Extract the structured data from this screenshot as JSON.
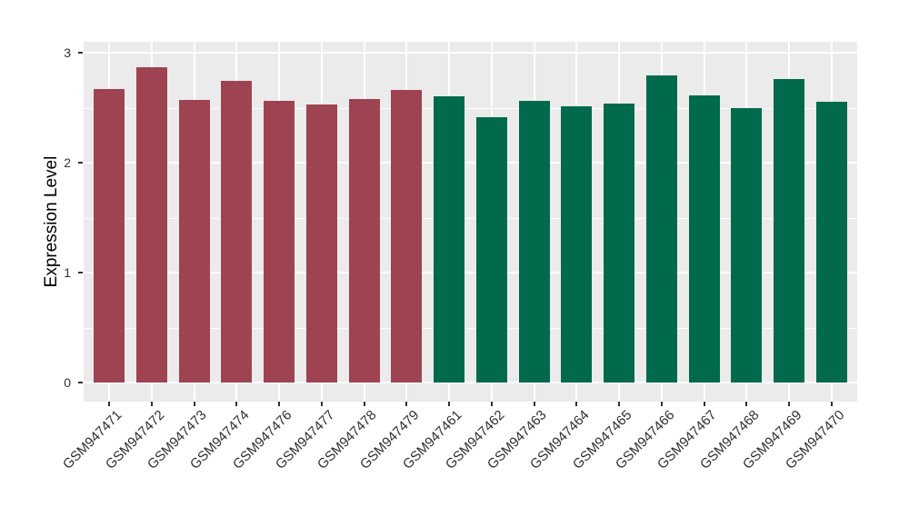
{
  "chart_data": {
    "type": "bar",
    "title": "",
    "xlabel": "",
    "ylabel": "Expression Level",
    "ylim": [
      0,
      3
    ],
    "yticks": [
      0,
      1,
      2,
      3
    ],
    "yticks_minor": [
      0.5,
      1.5,
      2.5
    ],
    "grid": "on",
    "legend_position": "none",
    "panel_bg_color": "#EBEBEB",
    "grid_color": "#FFFFFF",
    "group_colors": {
      "left_group": "#9E4352",
      "right_group": "#016A4C"
    },
    "categories": [
      "GSM947471",
      "GSM947472",
      "GSM947473",
      "GSM947474",
      "GSM947476",
      "GSM947477",
      "GSM947478",
      "GSM947479",
      "GSM947461",
      "GSM947462",
      "GSM947463",
      "GSM947464",
      "GSM947465",
      "GSM947466",
      "GSM947467",
      "GSM947468",
      "GSM947469",
      "GSM947470"
    ],
    "values": [
      2.67,
      2.87,
      2.57,
      2.74,
      2.56,
      2.53,
      2.58,
      2.66,
      2.6,
      2.41,
      2.56,
      2.51,
      2.54,
      2.79,
      2.61,
      2.5,
      2.76,
      2.55
    ],
    "bars": [
      {
        "label": "GSM947471",
        "value": 2.67,
        "group": "left_group"
      },
      {
        "label": "GSM947472",
        "value": 2.87,
        "group": "left_group"
      },
      {
        "label": "GSM947473",
        "value": 2.57,
        "group": "left_group"
      },
      {
        "label": "GSM947474",
        "value": 2.74,
        "group": "left_group"
      },
      {
        "label": "GSM947476",
        "value": 2.56,
        "group": "left_group"
      },
      {
        "label": "GSM947477",
        "value": 2.53,
        "group": "left_group"
      },
      {
        "label": "GSM947478",
        "value": 2.58,
        "group": "left_group"
      },
      {
        "label": "GSM947479",
        "value": 2.66,
        "group": "left_group"
      },
      {
        "label": "GSM947461",
        "value": 2.6,
        "group": "right_group"
      },
      {
        "label": "GSM947462",
        "value": 2.41,
        "group": "right_group"
      },
      {
        "label": "GSM947463",
        "value": 2.56,
        "group": "right_group"
      },
      {
        "label": "GSM947464",
        "value": 2.51,
        "group": "right_group"
      },
      {
        "label": "GSM947465",
        "value": 2.54,
        "group": "right_group"
      },
      {
        "label": "GSM947466",
        "value": 2.79,
        "group": "right_group"
      },
      {
        "label": "GSM947467",
        "value": 2.61,
        "group": "right_group"
      },
      {
        "label": "GSM947468",
        "value": 2.5,
        "group": "right_group"
      },
      {
        "label": "GSM947469",
        "value": 2.76,
        "group": "right_group"
      },
      {
        "label": "GSM947470",
        "value": 2.55,
        "group": "right_group"
      }
    ]
  }
}
